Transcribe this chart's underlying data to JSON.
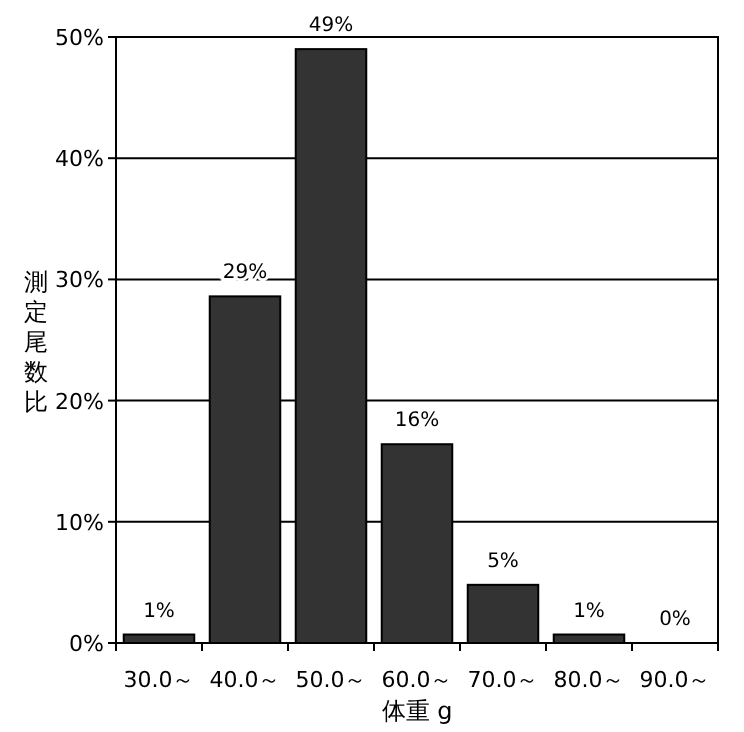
{
  "chart_data": {
    "type": "bar",
    "xlabel": "体重 g",
    "ylabel": "測定尾数比",
    "categories": [
      "30.0～",
      "40.0～",
      "50.0～",
      "60.0～",
      "70.0～",
      "80.0～",
      "90.0～"
    ],
    "values": [
      0.7,
      28.6,
      49.0,
      16.4,
      4.8,
      0.7,
      0
    ],
    "value_labels": [
      "1%",
      "29%",
      "49%",
      "16%",
      "5%",
      "1%",
      "0%"
    ],
    "color": "#333333",
    "ylim": [
      0,
      50
    ],
    "yticks": [
      {
        "value": 0,
        "label": "0%"
      },
      {
        "value": 10,
        "label": "10%"
      },
      {
        "value": 20,
        "label": "20%"
      },
      {
        "value": 30,
        "label": "30%"
      },
      {
        "value": 40,
        "label": "40%"
      },
      {
        "value": 50,
        "label": "50%"
      }
    ],
    "grid": "y"
  }
}
